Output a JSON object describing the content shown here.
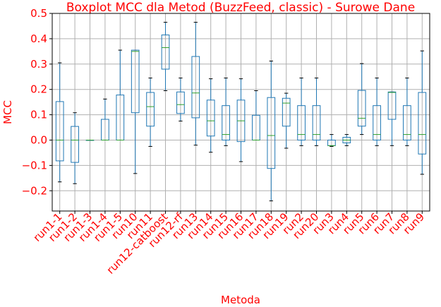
{
  "chart_data": {
    "type": "boxplot",
    "title": "Boxplot MCC dla Metod (BuzzFeed, classic) - Surowe Dane",
    "xlabel": "Metoda",
    "ylabel": "MCC",
    "ylim": [
      -0.28,
      0.5
    ],
    "yticks": [
      -0.2,
      -0.1,
      0.0,
      0.1,
      0.2,
      0.3,
      0.4,
      0.5
    ],
    "ytick_labels": [
      "−0.2",
      "−0.1",
      "0.0",
      "0.1",
      "0.2",
      "0.3",
      "0.4",
      "0.5"
    ],
    "grid": true,
    "categories": [
      "run1-1",
      "run1-2",
      "run1-3",
      "run1-4",
      "run1-5",
      "run10",
      "run11",
      "run12-catboost",
      "run12-rf",
      "run13",
      "run14",
      "run15",
      "run16",
      "run17",
      "run18",
      "run19",
      "run2",
      "run20",
      "run3",
      "run4",
      "run5",
      "run6",
      "run7",
      "run8",
      "run9"
    ],
    "boxes": [
      {
        "min": -0.165,
        "q1": -0.082,
        "median": 0.0,
        "q3": 0.152,
        "max": 0.305
      },
      {
        "min": -0.172,
        "q1": -0.088,
        "median": 0.0,
        "q3": 0.054,
        "max": 0.108
      },
      {
        "min": 0.0,
        "q1": 0.0,
        "median": 0.0,
        "q3": 0.0,
        "max": 0.0
      },
      {
        "min": 0.0,
        "q1": 0.0,
        "median": 0.0,
        "q3": 0.082,
        "max": 0.162
      },
      {
        "min": 0.0,
        "q1": 0.0,
        "median": 0.0,
        "q3": 0.178,
        "max": 0.355
      },
      {
        "min": -0.132,
        "q1": 0.108,
        "median": 0.35,
        "q3": 0.355,
        "max": 0.355
      },
      {
        "min": -0.025,
        "q1": 0.055,
        "median": 0.132,
        "q3": 0.188,
        "max": 0.245
      },
      {
        "min": 0.195,
        "q1": 0.28,
        "median": 0.365,
        "q3": 0.415,
        "max": 0.465
      },
      {
        "min": 0.075,
        "q1": 0.105,
        "median": 0.14,
        "q3": 0.19,
        "max": 0.245
      },
      {
        "min": -0.02,
        "q1": 0.088,
        "median": 0.186,
        "q3": 0.33,
        "max": 0.465
      },
      {
        "min": -0.048,
        "q1": 0.016,
        "median": 0.076,
        "q3": 0.158,
        "max": 0.242
      },
      {
        "min": -0.022,
        "q1": 0.0,
        "median": 0.022,
        "q3": 0.136,
        "max": 0.245
      },
      {
        "min": -0.085,
        "q1": -0.006,
        "median": 0.076,
        "q3": 0.158,
        "max": 0.242
      },
      {
        "min": 0.0,
        "q1": 0.0,
        "median": 0.0,
        "q3": 0.098,
        "max": 0.195
      },
      {
        "min": -0.24,
        "q1": -0.112,
        "median": 0.018,
        "q3": 0.168,
        "max": 0.312
      },
      {
        "min": -0.032,
        "q1": 0.055,
        "median": 0.146,
        "q3": 0.165,
        "max": 0.185
      },
      {
        "min": -0.022,
        "q1": 0.0,
        "median": 0.022,
        "q3": 0.136,
        "max": 0.245
      },
      {
        "min": -0.022,
        "q1": 0.0,
        "median": 0.022,
        "q3": 0.136,
        "max": 0.245
      },
      {
        "min": -0.025,
        "q1": -0.022,
        "median": -0.022,
        "q3": 0.0,
        "max": 0.022
      },
      {
        "min": -0.022,
        "q1": -0.011,
        "median": 0.0,
        "q3": 0.011,
        "max": 0.022
      },
      {
        "min": 0.022,
        "q1": 0.055,
        "median": 0.086,
        "q3": 0.196,
        "max": 0.302
      },
      {
        "min": -0.022,
        "q1": 0.0,
        "median": 0.022,
        "q3": 0.136,
        "max": 0.245
      },
      {
        "min": -0.022,
        "q1": 0.082,
        "median": 0.188,
        "q3": 0.19,
        "max": 0.19
      },
      {
        "min": -0.022,
        "q1": 0.0,
        "median": 0.022,
        "q3": 0.136,
        "max": 0.245
      },
      {
        "min": -0.135,
        "q1": -0.055,
        "median": 0.022,
        "q3": 0.188,
        "max": 0.352
      }
    ],
    "colors": {
      "box": "#1f77b4",
      "median": "#2ca02c",
      "whisker_cap": "#000000",
      "label": "#ff0000",
      "grid": "#b0b0b0",
      "axis": "#000000"
    }
  }
}
